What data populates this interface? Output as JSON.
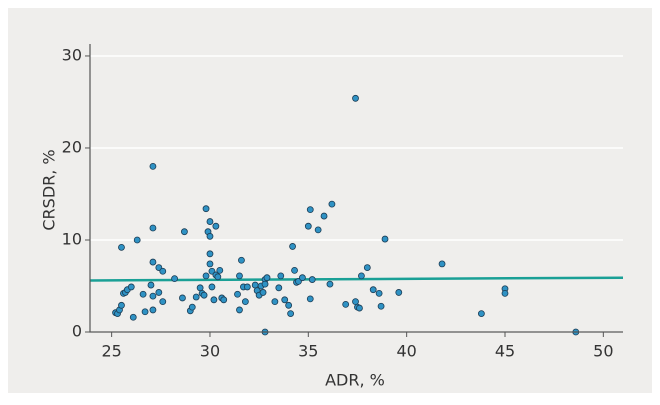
{
  "chart_data": {
    "type": "scatter",
    "x_label": "ADR, %",
    "y_label": "CRSDR, %",
    "x": [
      25.2,
      25.3,
      25.4,
      25.5,
      25.5,
      25.6,
      25.7,
      25.8,
      26.0,
      26.1,
      26.3,
      26.6,
      26.7,
      27.0,
      27.1,
      27.1,
      27.1,
      27.1,
      27.1,
      27.4,
      27.4,
      27.6,
      27.6,
      28.2,
      28.6,
      28.7,
      29.0,
      29.1,
      29.3,
      29.5,
      29.6,
      29.7,
      29.8,
      29.8,
      29.9,
      30.0,
      30.0,
      30.0,
      30.0,
      30.1,
      30.1,
      30.2,
      30.3,
      30.3,
      30.4,
      30.5,
      30.6,
      30.7,
      31.4,
      31.5,
      31.5,
      31.6,
      31.7,
      31.8,
      31.9,
      32.3,
      32.4,
      32.5,
      32.6,
      32.7,
      32.8,
      32.8,
      32.8,
      32.9,
      33.3,
      33.5,
      33.6,
      33.8,
      34.0,
      34.1,
      34.2,
      34.3,
      34.4,
      34.5,
      34.7,
      35.0,
      35.1,
      35.1,
      35.2,
      35.5,
      35.8,
      36.1,
      36.2,
      36.9,
      37.4,
      37.4,
      37.5,
      37.6,
      37.7,
      38.0,
      38.3,
      38.6,
      38.7,
      38.9,
      39.6,
      41.8,
      43.8,
      45.0,
      45.0,
      48.6
    ],
    "values": [
      2.1,
      2.0,
      2.4,
      2.9,
      9.2,
      4.2,
      4.3,
      4.6,
      4.9,
      1.6,
      10.0,
      4.1,
      2.2,
      5.1,
      7.6,
      18.0,
      11.3,
      3.9,
      2.4,
      7.0,
      4.3,
      3.3,
      6.6,
      5.8,
      3.7,
      10.9,
      2.3,
      2.7,
      3.8,
      4.8,
      4.2,
      4.0,
      13.4,
      6.1,
      10.9,
      12.0,
      10.4,
      8.5,
      7.4,
      6.6,
      4.9,
      3.5,
      6.2,
      11.5,
      6.0,
      6.7,
      3.7,
      3.5,
      4.1,
      2.4,
      6.1,
      7.8,
      4.9,
      3.3,
      4.9,
      5.1,
      4.5,
      4.0,
      5.0,
      4.3,
      5.7,
      5.2,
      0,
      5.9,
      3.3,
      4.8,
      6.1,
      3.5,
      2.9,
      2.0,
      9.3,
      6.7,
      5.4,
      5.5,
      5.9,
      11.5,
      13.3,
      3.6,
      5.7,
      11.1,
      12.6,
      5.2,
      13.9,
      3.0,
      25.4,
      3.3,
      2.7,
      2.6,
      6.1,
      7.0,
      4.6,
      4.2,
      2.8,
      10.1,
      4.3,
      7.4,
      2.0,
      4.7,
      4.2,
      0
    ],
    "color": "#2f92c4",
    "trend_line": {
      "x": [
        23.9,
        51
      ],
      "values": [
        5.6,
        5.9
      ],
      "color": "#1aa096"
    },
    "xlim": [
      23.9,
      51
    ],
    "xticks": [
      25,
      30,
      35,
      40,
      45,
      50
    ],
    "ylim": [
      0,
      31.3
    ],
    "yticks": [
      0,
      10,
      20,
      30
    ],
    "grid": true
  }
}
